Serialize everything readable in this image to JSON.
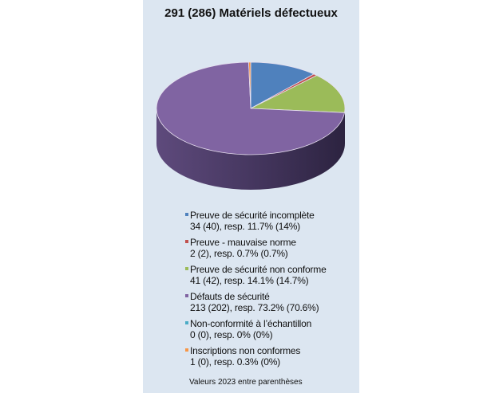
{
  "chart_data": {
    "type": "pie",
    "title": "291 (286) Matériels défectueux",
    "start_angle_deg": 0,
    "direction": "clockwise",
    "three_d": true,
    "series": [
      {
        "name": "Preuve de sécurité incomplète",
        "detail": "34 (40), resp. 11.7% (14%)",
        "value": 34,
        "value_2023": 40,
        "percent": 11.7,
        "percent_2023": 14,
        "color": "#4f81bd"
      },
      {
        "name": "Preuve - mauvaise norme",
        "detail": "2 (2), resp. 0.7% (0.7%)",
        "value": 2,
        "value_2023": 2,
        "percent": 0.7,
        "percent_2023": 0.7,
        "color": "#c0504d"
      },
      {
        "name": "Preuve de sécurité non conforme",
        "detail": "41 (42), resp. 14.1% (14.7%)",
        "value": 41,
        "value_2023": 42,
        "percent": 14.1,
        "percent_2023": 14.7,
        "color": "#9bbb59"
      },
      {
        "name": "Défauts de sécurité",
        "detail": "213 (202), resp. 73.2% (70.6%)",
        "value": 213,
        "value_2023": 202,
        "percent": 73.2,
        "percent_2023": 70.6,
        "color": "#8064a2"
      },
      {
        "name": "Non-conformité à l’échantillon",
        "detail": "0 (0), resp. 0% (0%)",
        "value": 0,
        "value_2023": 0,
        "percent": 0,
        "percent_2023": 0,
        "color": "#4bacc6"
      },
      {
        "name": "Inscriptions non conformes",
        "detail": "1 (0), resp. 0.3% (0%)",
        "value": 1,
        "value_2023": 0,
        "percent": 0.3,
        "percent_2023": 0,
        "color": "#f79646"
      }
    ],
    "legend_position": "bottom",
    "note": "Valeurs 2023 entre parenthèses"
  }
}
